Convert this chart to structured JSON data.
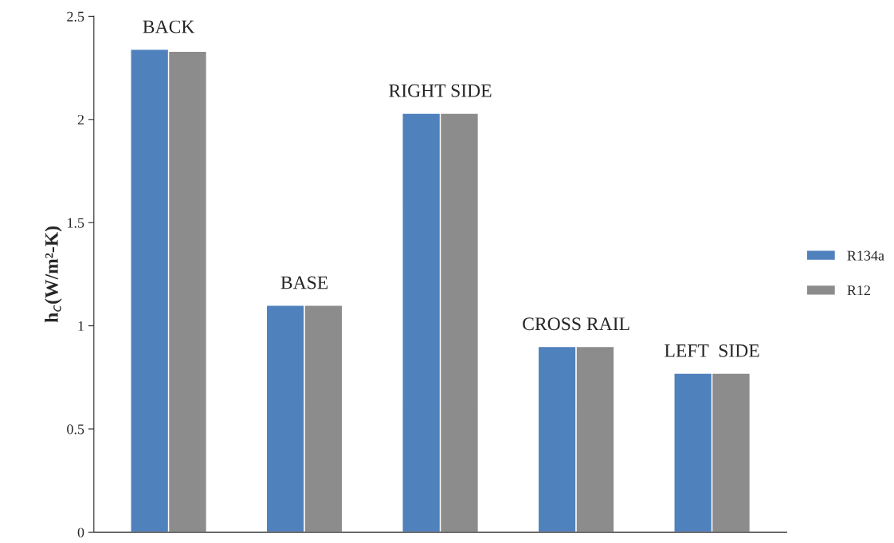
{
  "chart_data": {
    "type": "bar",
    "categories": [
      "BACK",
      "BASE",
      "RIGHT SIDE",
      "CROSS RAIL",
      "LEFT  SIDE"
    ],
    "series": [
      {
        "name": "R134a",
        "color": "#4f81bd",
        "values": [
          2.34,
          1.1,
          2.03,
          0.9,
          0.77
        ]
      },
      {
        "name": "R12",
        "color": "#8c8c8c",
        "values": [
          2.33,
          1.1,
          2.03,
          0.9,
          0.77
        ]
      }
    ],
    "ylabel": "h$_{c}$(W/m²-K)",
    "ylim": [
      0,
      2.5
    ],
    "yticks": [
      0,
      0.5,
      1,
      1.5,
      2,
      2.5
    ],
    "grid": false,
    "legend": "right"
  }
}
